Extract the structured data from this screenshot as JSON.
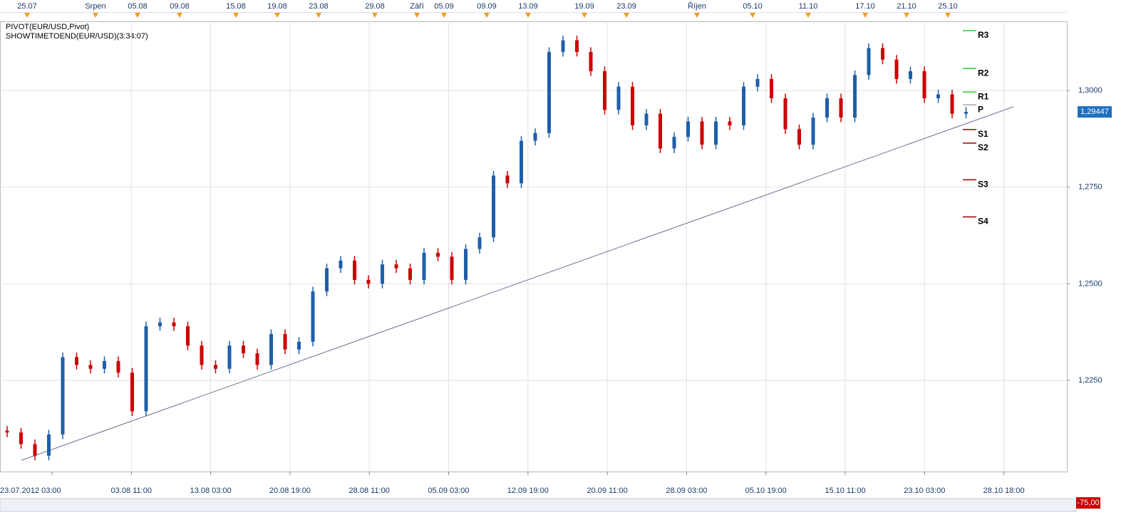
{
  "chart_data": {
    "type": "candlestick",
    "indicators": [
      "PIVOT(EUR/USD,Pivot)",
      "SHOWTIMETOEND(EUR/USD)(3:34:07)"
    ],
    "top_labels": [
      "25.07",
      "Srpen",
      "05.08",
      "09.08",
      "15.08",
      "19.08",
      "23.08",
      "29.08",
      "Září",
      "05.09",
      "09.09",
      "13.09",
      "19.09",
      "23.09",
      "Říjen",
      "05.10",
      "11.10",
      "17.10",
      "21.10",
      "25.10"
    ],
    "x_labels": [
      "23.07.2012 03:00",
      "03.08 11:00",
      "13.08 03:00",
      "20.08 19:00",
      "28.08 11:00",
      "05.09 03:00",
      "12.09 19:00",
      "20.09 11:00",
      "28.09 03:00",
      "05.10 19:00",
      "15.10 11:00",
      "23.10 03:00",
      "28.10 18:00"
    ],
    "ylim": [
      1.2014,
      1.3179
    ],
    "yticks": [
      {
        "value": 1.3,
        "label": "1,3000"
      },
      {
        "value": 1.275,
        "label": "1,2750"
      },
      {
        "value": 1.25,
        "label": "1,2500"
      },
      {
        "value": 1.225,
        "label": "1,2250"
      }
    ],
    "grid": true,
    "up_color": "#1f5fa8",
    "down_color": "#cc0000",
    "open": [
      1.212,
      1.2115,
      1.2085,
      1.2055,
      1.211,
      1.231,
      1.229,
      1.228,
      1.23,
      1.227,
      1.217,
      1.239,
      1.24,
      1.239,
      1.234,
      1.229,
      1.228,
      1.234,
      1.232,
      1.229,
      1.237,
      1.233,
      1.235,
      1.248,
      1.254,
      1.256,
      1.251,
      1.25,
      1.255,
      1.254,
      1.251,
      1.258,
      1.257,
      1.251,
      1.259,
      1.262,
      1.278,
      1.276,
      1.287,
      1.289,
      1.31,
      1.313,
      1.31,
      1.305,
      1.295,
      1.301,
      1.291,
      1.294,
      1.285,
      1.288,
      1.292,
      1.286,
      1.292,
      1.291,
      1.301,
      1.303,
      1.298,
      1.29,
      1.286,
      1.293,
      1.298,
      1.293,
      1.304,
      1.311,
      1.308,
      1.303,
      1.305,
      1.298,
      1.299,
      1.294
    ],
    "high": [
      1.2132,
      1.2127,
      1.2097,
      1.2122,
      1.2322,
      1.2322,
      1.2302,
      1.2312,
      1.2312,
      1.2282,
      1.2402,
      1.2412,
      1.2412,
      1.2402,
      1.2352,
      1.2302,
      1.2352,
      1.2352,
      1.2332,
      1.2382,
      1.2382,
      1.2362,
      1.2492,
      1.2552,
      1.2572,
      1.2572,
      1.2522,
      1.2562,
      1.2562,
      1.2552,
      1.2592,
      1.2592,
      1.2582,
      1.2602,
      1.2632,
      1.2792,
      1.2792,
      1.2882,
      1.2902,
      1.3112,
      1.3142,
      1.3142,
      1.3112,
      1.3062,
      1.3022,
      1.3022,
      1.2952,
      1.2952,
      1.2892,
      1.2932,
      1.2932,
      1.2932,
      1.2932,
      1.3022,
      1.3042,
      1.3042,
      1.2992,
      1.2912,
      1.2942,
      1.2992,
      1.2992,
      1.3052,
      1.3122,
      1.3122,
      1.3092,
      1.3062,
      1.3062,
      1.3002,
      1.3002,
      1.2957
    ],
    "low": [
      1.2103,
      1.2073,
      1.2043,
      1.2043,
      1.2098,
      1.2278,
      1.2268,
      1.2268,
      1.2258,
      1.2158,
      1.2158,
      1.2378,
      1.2378,
      1.2328,
      1.2278,
      1.2268,
      1.2268,
      1.2308,
      1.2278,
      1.2278,
      1.2318,
      1.2318,
      1.2338,
      1.2468,
      1.2528,
      1.2498,
      1.2488,
      1.2488,
      1.2528,
      1.2498,
      1.2498,
      1.2558,
      1.2498,
      1.2498,
      1.2578,
      1.2608,
      1.2748,
      1.2748,
      1.2858,
      1.2878,
      1.3088,
      1.3088,
      1.3038,
      1.2938,
      1.2938,
      1.2898,
      1.2898,
      1.2838,
      1.2838,
      1.2868,
      1.2848,
      1.2848,
      1.2898,
      1.2898,
      1.2998,
      1.2968,
      1.2888,
      1.2848,
      1.2848,
      1.2918,
      1.2918,
      1.2918,
      1.3028,
      1.3068,
      1.3018,
      1.3018,
      1.2968,
      1.2968,
      1.2928,
      1.2928
    ],
    "close": [
      1.2115,
      1.2085,
      1.2055,
      1.211,
      1.231,
      1.229,
      1.228,
      1.23,
      1.227,
      1.217,
      1.239,
      1.24,
      1.239,
      1.234,
      1.229,
      1.228,
      1.234,
      1.232,
      1.229,
      1.237,
      1.233,
      1.235,
      1.248,
      1.254,
      1.256,
      1.251,
      1.25,
      1.255,
      1.254,
      1.251,
      1.258,
      1.257,
      1.251,
      1.259,
      1.262,
      1.278,
      1.276,
      1.287,
      1.289,
      1.31,
      1.313,
      1.31,
      1.305,
      1.295,
      1.301,
      1.291,
      1.294,
      1.285,
      1.288,
      1.292,
      1.286,
      1.292,
      1.291,
      1.301,
      1.303,
      1.298,
      1.29,
      1.286,
      1.293,
      1.298,
      1.293,
      1.304,
      1.311,
      1.308,
      1.303,
      1.305,
      1.298,
      1.299,
      1.294,
      1.2945
    ],
    "pivots": [
      {
        "name": "R3",
        "value": 1.3155,
        "color": "#33cc33"
      },
      {
        "name": "R2",
        "value": 1.3057,
        "color": "#33cc33"
      },
      {
        "name": "R1",
        "value": 1.2996,
        "color": "#33cc33"
      },
      {
        "name": "P",
        "value": 1.2963,
        "color": "#aaaaaa"
      },
      {
        "name": "S1",
        "value": 1.2899,
        "color": "#990000"
      },
      {
        "name": "S2",
        "value": 1.2864,
        "color": "#990000"
      },
      {
        "name": "S3",
        "value": 1.2769,
        "color": "#990000"
      },
      {
        "name": "S4",
        "value": 1.2673,
        "color": "#990000"
      }
    ],
    "trendline": {
      "start": 1.2043,
      "end": 1.2958,
      "color": "#707090"
    },
    "last_price": {
      "value": 1.29447,
      "label": "1,29447"
    },
    "footer_value": "-75,00"
  }
}
